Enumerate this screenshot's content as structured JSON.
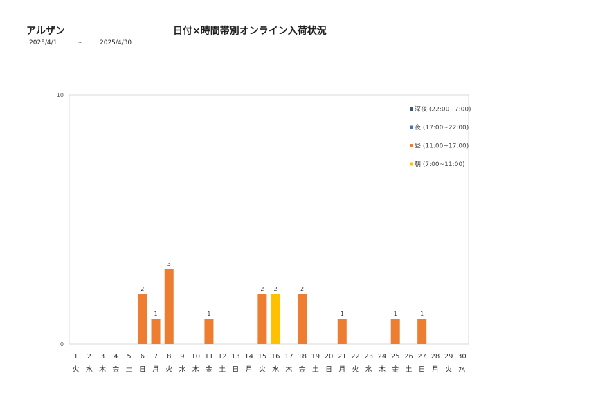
{
  "header": {
    "store_name": "アルザン",
    "title": "日付×時間帯別オンライン入荷状況",
    "date_from": "2025/4/1",
    "date_sep": "~",
    "date_to": "2025/4/30"
  },
  "chart_data": {
    "type": "bar",
    "stacked": true,
    "ylim": [
      0,
      10
    ],
    "y_ticks": [
      0,
      10
    ],
    "grid": false,
    "legend_position": "top-right",
    "categories": [
      "1",
      "2",
      "3",
      "4",
      "5",
      "6",
      "7",
      "8",
      "9",
      "10",
      "11",
      "12",
      "13",
      "14",
      "15",
      "16",
      "17",
      "18",
      "19",
      "20",
      "21",
      "22",
      "23",
      "24",
      "25",
      "26",
      "27",
      "28",
      "29",
      "30"
    ],
    "weekdays": [
      "火",
      "水",
      "木",
      "金",
      "土",
      "日",
      "月",
      "火",
      "水",
      "木",
      "金",
      "土",
      "日",
      "月",
      "火",
      "水",
      "木",
      "金",
      "土",
      "日",
      "月",
      "火",
      "水",
      "木",
      "金",
      "土",
      "日",
      "月",
      "火",
      "水"
    ],
    "series": [
      {
        "name": "朝 (7:00~11:00)",
        "color": "#FFC000",
        "values": [
          0,
          0,
          0,
          0,
          0,
          0,
          0,
          0,
          0,
          0,
          0,
          0,
          0,
          0,
          0,
          2,
          0,
          0,
          0,
          0,
          0,
          0,
          0,
          0,
          0,
          0,
          0,
          0,
          0,
          0
        ]
      },
      {
        "name": "昼 (11:00~17:00)",
        "color": "#ED7D31",
        "values": [
          0,
          0,
          0,
          0,
          0,
          2,
          1,
          3,
          0,
          0,
          1,
          0,
          0,
          0,
          2,
          0,
          0,
          2,
          0,
          0,
          1,
          0,
          0,
          0,
          1,
          0,
          1,
          0,
          0,
          0
        ]
      },
      {
        "name": "夜 (17:00~22:00)",
        "color": "#4472C4",
        "values": [
          0,
          0,
          0,
          0,
          0,
          0,
          0,
          0,
          0,
          0,
          0,
          0,
          0,
          0,
          0,
          0,
          0,
          0,
          0,
          0,
          0,
          0,
          0,
          0,
          0,
          0,
          0,
          0,
          0,
          0
        ]
      },
      {
        "name": "深夜 (22:00~7:00)",
        "color": "#44546A",
        "values": [
          0,
          0,
          0,
          0,
          0,
          0,
          0,
          0,
          0,
          0,
          0,
          0,
          0,
          0,
          0,
          0,
          0,
          0,
          0,
          0,
          0,
          0,
          0,
          0,
          0,
          0,
          0,
          0,
          0,
          0
        ]
      }
    ],
    "legend_order": [
      "深夜 (22:00~7:00)",
      "夜 (17:00~22:00)",
      "昼 (11:00~17:00)",
      "朝 (7:00~11:00)"
    ]
  }
}
